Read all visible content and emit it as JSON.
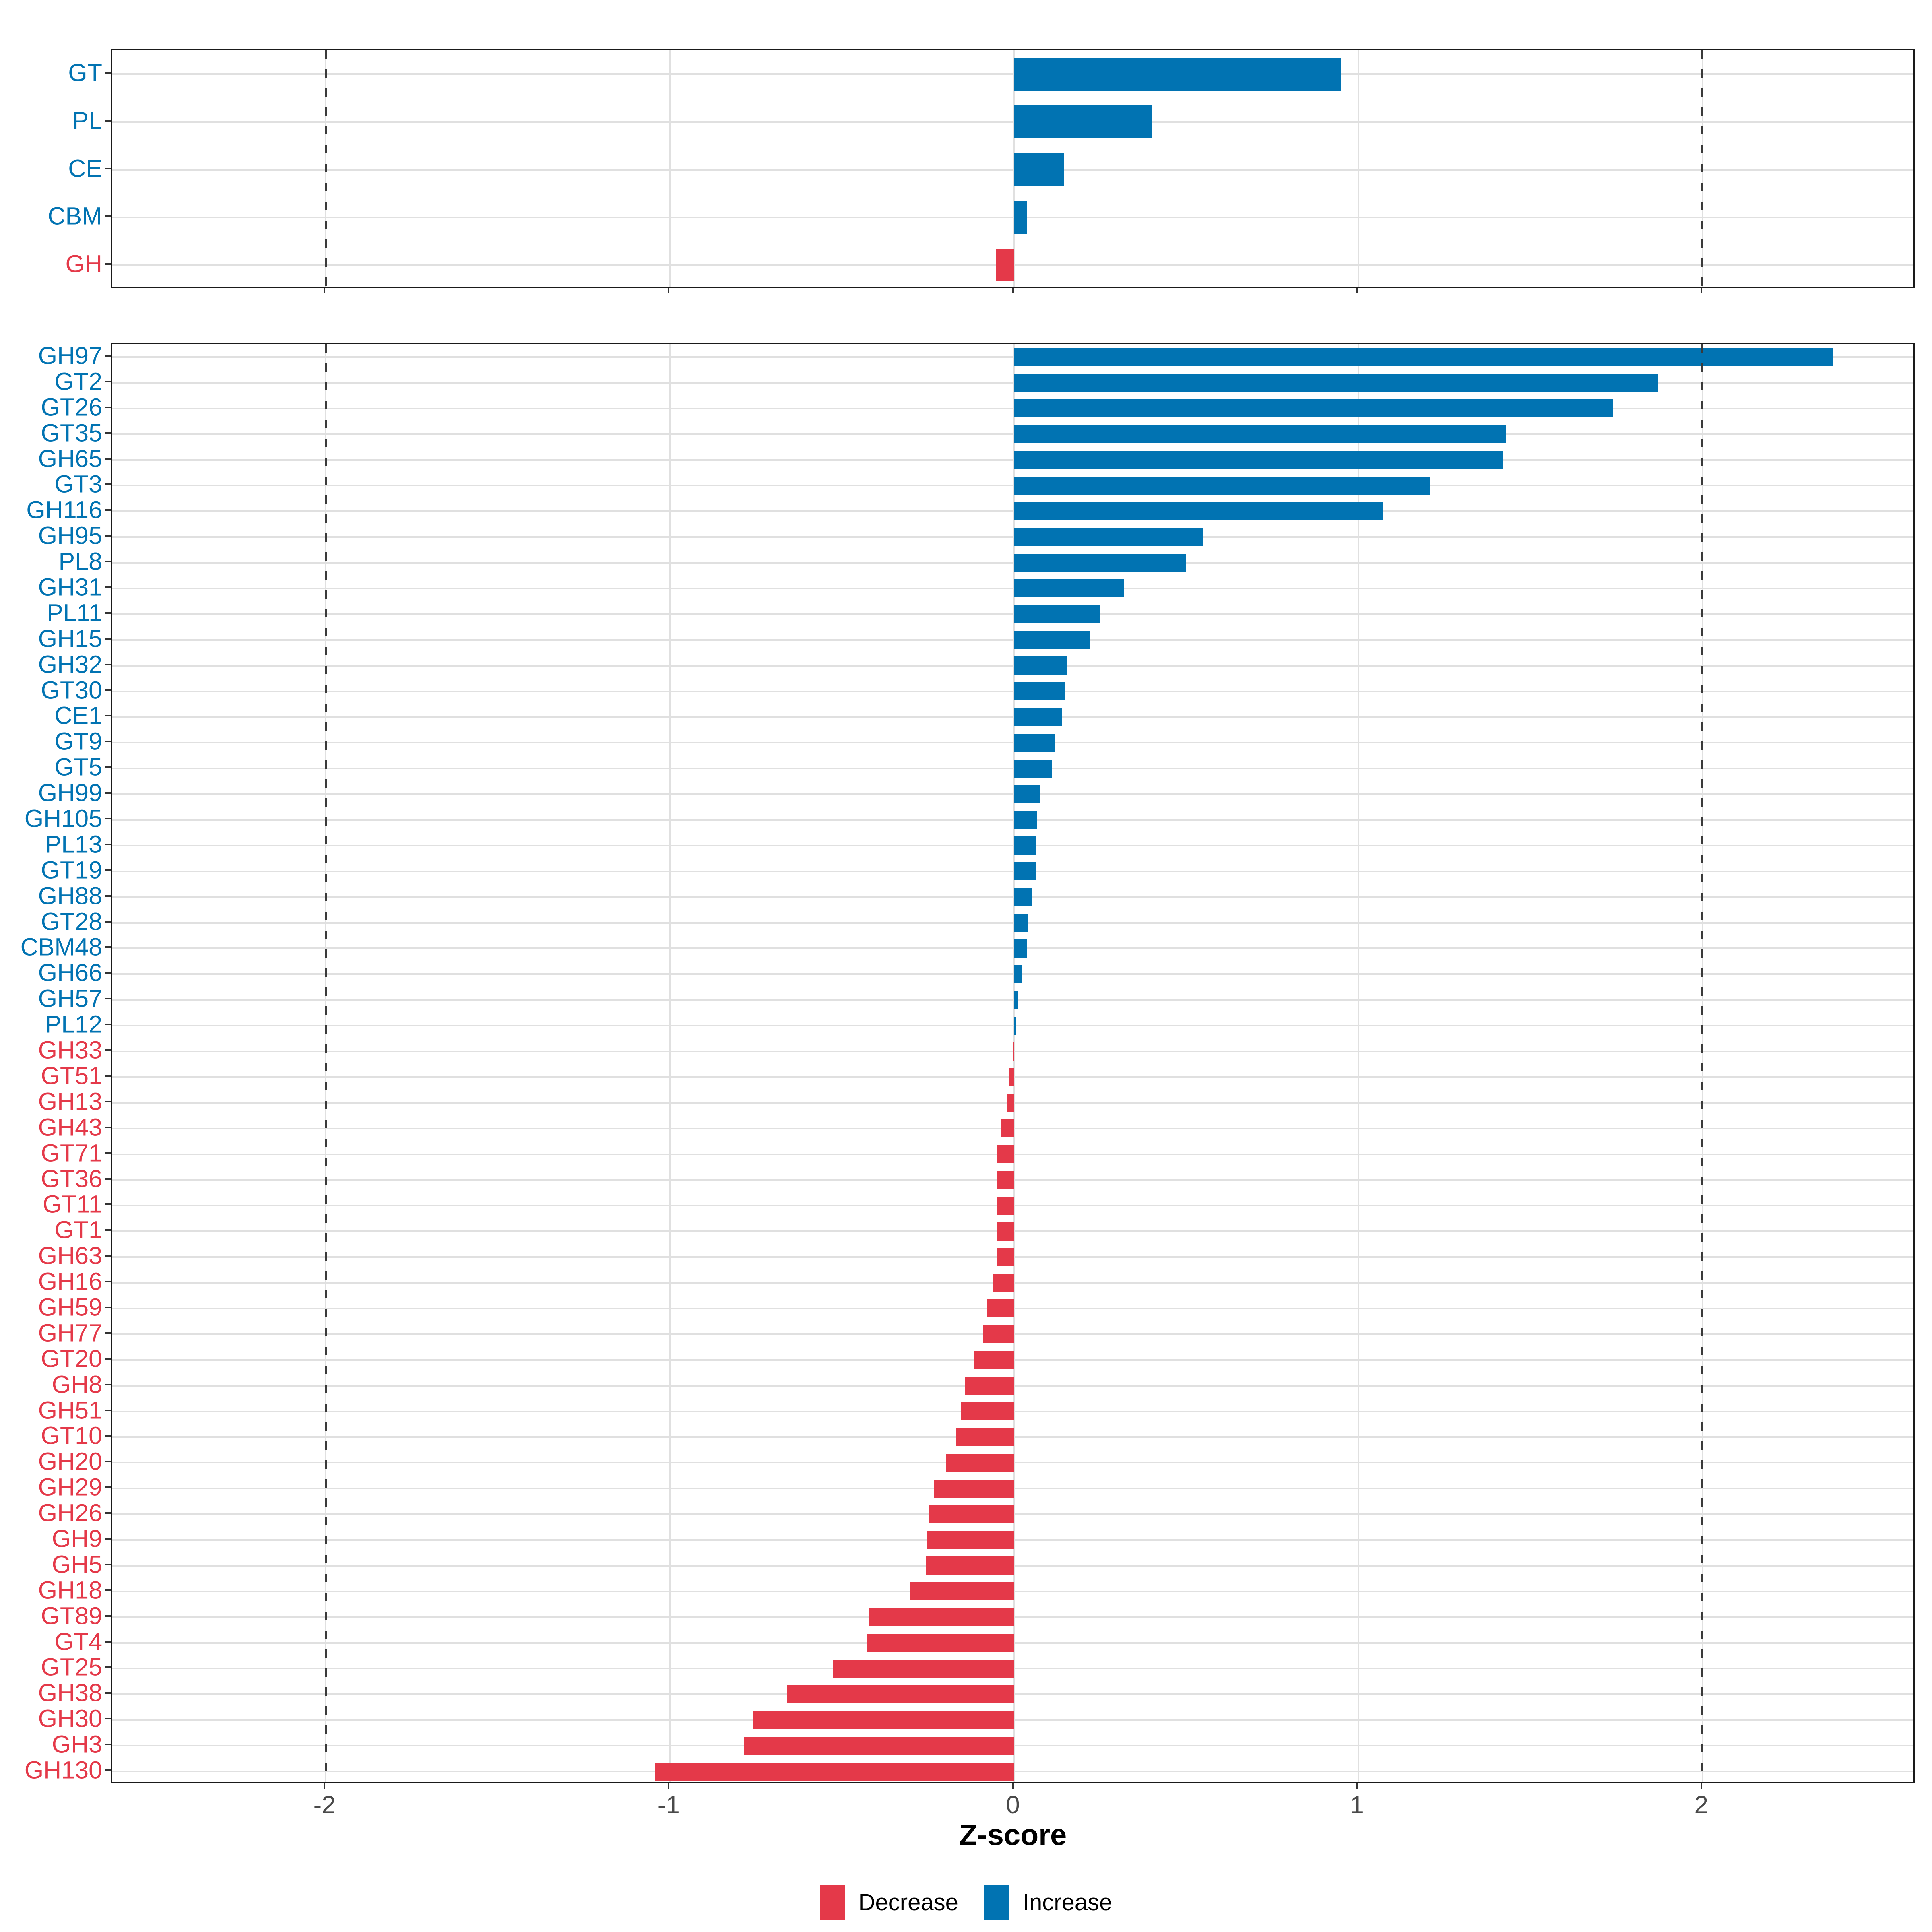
{
  "axis": {
    "label": "Z-score",
    "tick_values": [
      -2,
      -1,
      0,
      1,
      2
    ],
    "tick_labels": [
      "-2",
      "-1",
      "0",
      "1",
      "2"
    ],
    "xlim": [
      -2.62,
      2.62
    ],
    "dashed_vlines": [
      -2,
      2
    ],
    "grid": "on"
  },
  "legend": {
    "position": "bottom",
    "items": [
      {
        "label": "Decrease",
        "color": "#E43949"
      },
      {
        "label": "Increase",
        "color": "#0173B2"
      }
    ]
  },
  "colors": {
    "increase": "#0173B2",
    "decrease": "#E43949",
    "grid": "#E0E0E0",
    "panel_border": "#1A1A1A",
    "dashed_line": "#3A3A3A",
    "axis_text": "#4A4A4A",
    "tick_mark": "#333333"
  },
  "chart_data": [
    {
      "type": "bar",
      "orientation": "horizontal",
      "panel": "cazyme-classes",
      "categories": [
        "GT",
        "PL",
        "CE",
        "CBM",
        "GH"
      ],
      "values": [
        0.95,
        0.4,
        0.145,
        0.038,
        -0.052
      ],
      "directions": [
        "Increase",
        "Increase",
        "Increase",
        "Increase",
        "Decrease"
      ],
      "xlabel": "Z-score",
      "xlim": [
        -2.62,
        2.62
      ]
    },
    {
      "type": "bar",
      "orientation": "horizontal",
      "panel": "cazyme-families",
      "categories": [
        "GH97",
        "GT2",
        "GT26",
        "GT35",
        "GH65",
        "GT3",
        "GH116",
        "GH95",
        "PL8",
        "GH31",
        "PL11",
        "GH15",
        "GH32",
        "GT30",
        "CE1",
        "GT9",
        "GT5",
        "GH99",
        "GH105",
        "PL13",
        "GT19",
        "GH88",
        "GT28",
        "CBM48",
        "GH66",
        "GH57",
        "PL12",
        "GH33",
        "GT51",
        "GH13",
        "GH43",
        "GT71",
        "GT36",
        "GT11",
        "GT1",
        "GH63",
        "GH16",
        "GH59",
        "GH77",
        "GT20",
        "GH8",
        "GH51",
        "GT10",
        "GH20",
        "GH29",
        "GH26",
        "GH9",
        "GH5",
        "GH18",
        "GT89",
        "GT4",
        "GT25",
        "GH38",
        "GH30",
        "GH3",
        "GH130"
      ],
      "values": [
        2.38,
        1.87,
        1.74,
        1.43,
        1.42,
        1.21,
        1.07,
        0.55,
        0.5,
        0.32,
        0.25,
        0.22,
        0.155,
        0.148,
        0.14,
        0.12,
        0.11,
        0.077,
        0.066,
        0.065,
        0.062,
        0.051,
        0.039,
        0.038,
        0.024,
        0.01,
        0.006,
        -0.004,
        -0.016,
        -0.02,
        -0.037,
        -0.049,
        -0.049,
        -0.049,
        -0.049,
        -0.05,
        -0.06,
        -0.078,
        -0.092,
        -0.118,
        -0.143,
        -0.155,
        -0.169,
        -0.198,
        -0.233,
        -0.246,
        -0.252,
        -0.256,
        -0.303,
        -0.42,
        -0.427,
        -0.527,
        -0.66,
        -0.76,
        -0.784,
        -1.042
      ],
      "directions": [
        "Increase",
        "Increase",
        "Increase",
        "Increase",
        "Increase",
        "Increase",
        "Increase",
        "Increase",
        "Increase",
        "Increase",
        "Increase",
        "Increase",
        "Increase",
        "Increase",
        "Increase",
        "Increase",
        "Increase",
        "Increase",
        "Increase",
        "Increase",
        "Increase",
        "Increase",
        "Increase",
        "Increase",
        "Increase",
        "Increase",
        "Increase",
        "Decrease",
        "Decrease",
        "Decrease",
        "Decrease",
        "Decrease",
        "Decrease",
        "Decrease",
        "Decrease",
        "Decrease",
        "Decrease",
        "Decrease",
        "Decrease",
        "Decrease",
        "Decrease",
        "Decrease",
        "Decrease",
        "Decrease",
        "Decrease",
        "Decrease",
        "Decrease",
        "Decrease",
        "Decrease",
        "Decrease",
        "Decrease",
        "Decrease",
        "Decrease",
        "Decrease",
        "Decrease",
        "Decrease"
      ],
      "xlabel": "Z-score",
      "xlim": [
        -2.62,
        2.62
      ]
    }
  ]
}
